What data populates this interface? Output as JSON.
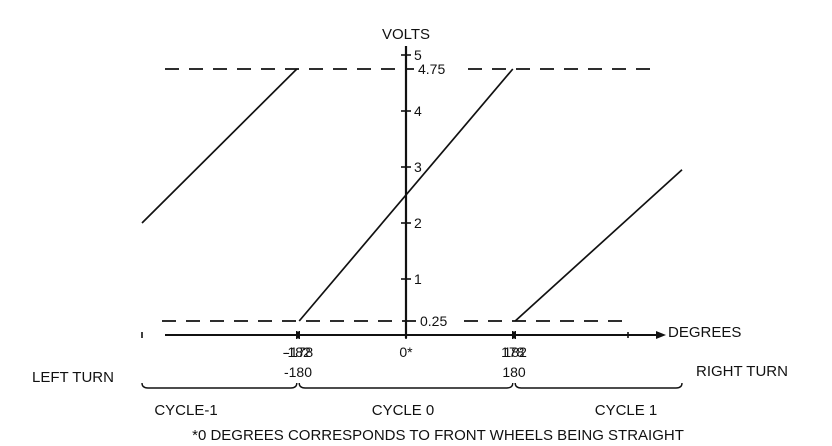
{
  "chart_data": {
    "type": "line",
    "ylabel": "VOLTS",
    "xlabel": "DEGREES",
    "ylim": [
      0,
      5
    ],
    "y_ticks": [
      "1",
      "2",
      "3",
      "4",
      "5"
    ],
    "y_tick_values": [
      1,
      2,
      3,
      4,
      5
    ],
    "x_ticks_upper": [
      {
        "value": -182,
        "label": "-182"
      },
      {
        "value": -178,
        "label": "-178"
      },
      {
        "value": 0,
        "label": "0*"
      },
      {
        "value": 178,
        "label": "178"
      },
      {
        "value": 182,
        "label": "182"
      }
    ],
    "x_ticks_lower": [
      {
        "value": -180,
        "label": "-180"
      },
      {
        "value": 180,
        "label": "180"
      }
    ],
    "reference_lines": [
      {
        "value": 4.75,
        "label": "4.75"
      },
      {
        "value": 0.25,
        "label": "0.25"
      }
    ],
    "series": [
      {
        "points": [
          [
            -440,
            2.0
          ],
          [
            -182,
            4.75
          ]
        ]
      },
      {
        "points": [
          [
            -178,
            0.25
          ],
          [
            178,
            4.75
          ]
        ]
      },
      {
        "points": [
          [
            182,
            0.25
          ],
          [
            460,
            2.95
          ]
        ]
      }
    ],
    "left_label": "LEFT TURN",
    "right_label": "RIGHT TURN",
    "cycles": [
      "CYCLE-1",
      "CYCLE 0",
      "CYCLE 1"
    ],
    "footnote": "*0 DEGREES CORRESPONDS TO FRONT WHEELS BEING STRAIGHT"
  }
}
